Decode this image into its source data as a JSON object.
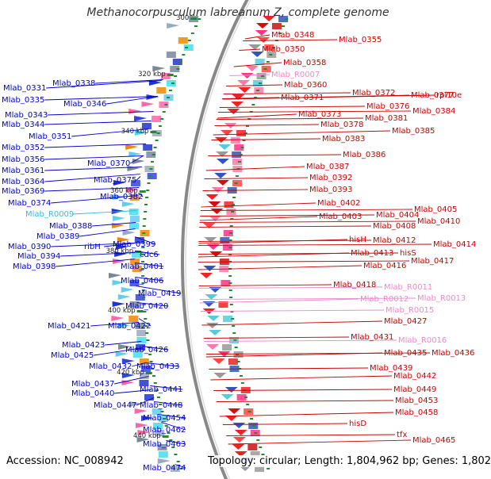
{
  "title": "Methanocorpusculum labreanum Z, complete genome",
  "footer": {
    "accession": "Accession: NC_008942",
    "topology": "Topology: circular; Length: 1,804,962 bp; Genes: 1,802"
  },
  "colors": {
    "left_label": "#0000cc",
    "right_label": "#cc0000",
    "rna_left": "#33bbdd",
    "rna_right": "#ee88cc",
    "backbone": "#888888",
    "tick_green": "#228833"
  },
  "scale_ticks": [
    "300",
    "320 kbp",
    "340 kbp",
    "360 kbp",
    "380 kbp",
    "400 kbp",
    "420 kbp",
    "440 kbp"
  ],
  "left_genes": [
    "Mlab_0331",
    "Mlab_0338",
    "Mlab_0335",
    "Mlab_0346",
    "Mlab_0343",
    "Mlab_0344",
    "Mlab_0351",
    "Mlab_0352",
    "Mlab_0356",
    "Mlab_0370",
    "Mlab_0361",
    "Mlab_0375",
    "Mlab_0364",
    "Mlab_0369",
    "Mlab_0382",
    "Mlab_0374",
    "Mlab_R0009",
    "Mlab_0388",
    "Mlab_0389",
    "Mlab_0390",
    "ribH",
    "Mlab_0399",
    "Mlab_0394",
    "cdc6",
    "Mlab_0398",
    "Mlab_0401",
    "Mlab_0406",
    "Mlab_0419",
    "Mlab_0420",
    "Mlab_0421",
    "Mlab_0422",
    "Mlab_0423",
    "Mlab_0426",
    "Mlab_0425",
    "Mlab_0432",
    "Mlab_0433",
    "Mlab_0437",
    "Mlab_0440",
    "Mlab_0441",
    "Mlab_0447",
    "Mlab_0448",
    "Mlab_0454",
    "Mlab_0462",
    "Mlab_0463",
    "Mlab_0474"
  ],
  "right_genes": [
    "Mlab_0348",
    "Mlab_0355",
    "Mlab_0350",
    "Mlab_0358",
    "Mlab_R0007",
    "Mlab_0360",
    "rpl10e",
    "Mlab_0371",
    "Mlab_0372",
    "Mlab_0377",
    "Mlab_0376",
    "Mlab_0384",
    "Mlab_0373",
    "Mlab_0381",
    "Mlab_0378",
    "Mlab_0385",
    "Mlab_0383",
    "Mlab_0386",
    "Mlab_0387",
    "Mlab_0392",
    "Mlab_0393",
    "Mlab_0402",
    "Mlab_0405",
    "Mlab_0404",
    "Mlab_0403",
    "Mlab_0410",
    "Mlab_0408",
    "hisH",
    "Mlab_0412",
    "Mlab_0414",
    "Mlab_0413",
    "hisS",
    "Mlab_0417",
    "Mlab_0416",
    "Mlab_0418",
    "Mlab_R0011",
    "Mlab_R0012",
    "Mlab_R0013",
    "Mlab_R0015",
    "Mlab_0427",
    "Mlab_0431",
    "Mlab_R0016",
    "Mlab_0435",
    "Mlab_0436",
    "Mlab_0439",
    "Mlab_0442",
    "Mlab_0449",
    "Mlab_0453",
    "Mlab_0458",
    "hisD",
    "tfx",
    "Mlab_0465"
  ]
}
